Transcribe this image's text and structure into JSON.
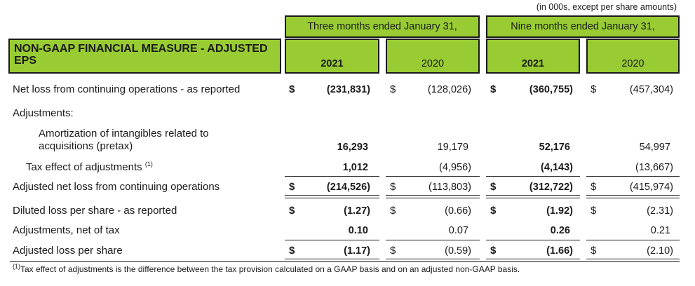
{
  "units_note": "(in 000s, except per share amounts)",
  "title": "NON-GAAP FINANCIAL MEASURE - ADJUSTED EPS",
  "periods": {
    "three_months": "Three months ended January 31,",
    "nine_months": "Nine months ended January 31,"
  },
  "years": {
    "y2021": "2021",
    "y2020": "2020"
  },
  "currency": "$",
  "rows": {
    "net_loss": {
      "label": "Net loss from continuing operations - as reported",
      "q21": "(231,831)",
      "q20": "(128,026)",
      "n21": "(360,755)",
      "n20": "(457,304)"
    },
    "adjustments_heading": {
      "label": "Adjustments:"
    },
    "amortization": {
      "label_line1": "Amortization of intangibles related to",
      "label_line2": "acquisitions (pretax)",
      "q21": "16,293",
      "q20": "19,179",
      "n21": "52,176",
      "n20": "54,997"
    },
    "tax_effect": {
      "label": "Tax effect of adjustments",
      "sup": "(1)",
      "q21": "1,012",
      "q20": "(4,956)",
      "n21": "(4,143)",
      "n20": "(13,667)"
    },
    "adjusted_net_loss": {
      "label": "Adjusted net loss from continuing operations",
      "q21": "(214,526)",
      "q20": "(113,803)",
      "n21": "(312,722)",
      "n20": "(415,974)"
    },
    "diluted_loss": {
      "label": "Diluted loss per share - as reported",
      "q21": "(1.27)",
      "q20": "(0.66)",
      "n21": "(1.92)",
      "n20": "(2.31)"
    },
    "adjustments_net": {
      "label": "Adjustments, net of tax",
      "q21": "0.10",
      "q20": "0.07",
      "n21": "0.26",
      "n20": "0.21"
    },
    "adjusted_loss": {
      "label": "Adjusted loss per share",
      "q21": "(1.17)",
      "q20": "(0.59)",
      "n21": "(1.66)",
      "n20": "(2.10)"
    }
  },
  "footnote": {
    "sup": "(1)",
    "text": "Tax effect of adjustments is the difference between the tax provision calculated on a GAAP basis and on an adjusted non-GAAP basis."
  },
  "colors": {
    "header_green": "#99cc33",
    "text": "#1a1a1a"
  }
}
